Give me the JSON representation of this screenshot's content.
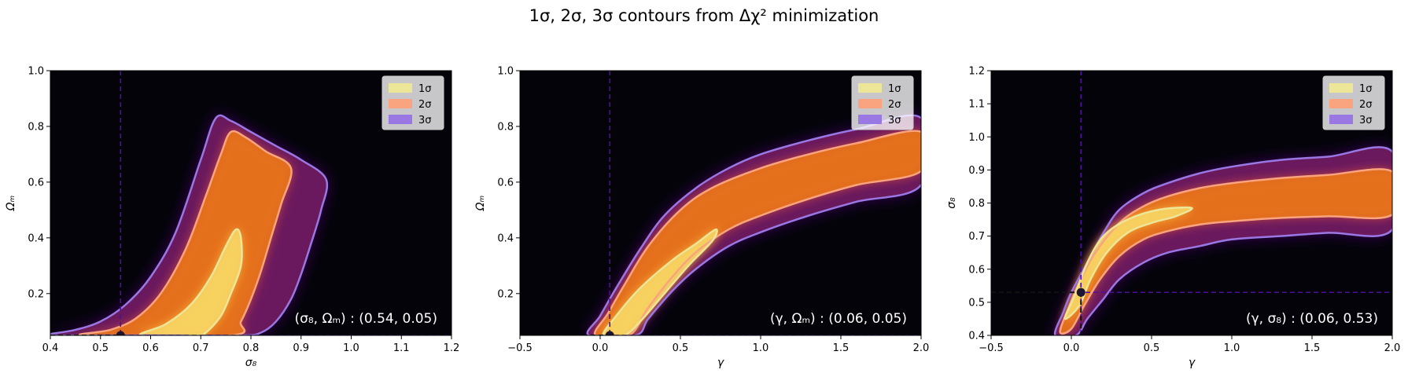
{
  "figure": {
    "suptitle": "1σ, 2σ, 3σ contours from Δχ² minimization"
  },
  "colors": {
    "background": "#04030a",
    "one_sigma": "#ede598",
    "two_sigma": "#f9a47e",
    "three_sigma": "#9a78e3",
    "marker_line": "#4b0f9b"
  },
  "chart_data": [
    {
      "type": "heatmap",
      "panel": "left",
      "xlabel": "σ₈",
      "ylabel": "Ωₘ",
      "xlim": [
        0.4,
        1.2
      ],
      "ylim": [
        0.05,
        1.0
      ],
      "xticks": [
        "0.4",
        "0.5",
        "0.6",
        "0.7",
        "0.8",
        "0.9",
        "1.0",
        "1.1",
        "1.2"
      ],
      "yticks": [
        "0.2",
        "0.4",
        "0.6",
        "0.8",
        "1.0"
      ],
      "legend": [
        "1σ",
        "2σ",
        "3σ"
      ],
      "legend_position": "upper right",
      "best_fit": {
        "x": 0.54,
        "y": 0.05
      },
      "annotation": "(σ₈, Ωₘ) : (0.54, 0.05)",
      "contours": {
        "three_sigma": [
          [
            0.4,
            0.055
          ],
          [
            0.45,
            0.07
          ],
          [
            0.5,
            0.1
          ],
          [
            0.55,
            0.16
          ],
          [
            0.6,
            0.26
          ],
          [
            0.65,
            0.42
          ],
          [
            0.7,
            0.68
          ],
          [
            0.73,
            0.83
          ],
          [
            0.76,
            0.82
          ],
          [
            0.8,
            0.78
          ],
          [
            0.85,
            0.73
          ],
          [
            0.9,
            0.68
          ],
          [
            0.95,
            0.61
          ],
          [
            0.94,
            0.5
          ],
          [
            0.92,
            0.38
          ],
          [
            0.9,
            0.27
          ],
          [
            0.88,
            0.18
          ],
          [
            0.85,
            0.1
          ],
          [
            0.82,
            0.06
          ],
          [
            0.78,
            0.05
          ],
          [
            0.6,
            0.05
          ],
          [
            0.45,
            0.05
          ],
          [
            0.4,
            0.05
          ]
        ],
        "two_sigma": [
          [
            0.47,
            0.05
          ],
          [
            0.52,
            0.07
          ],
          [
            0.57,
            0.11
          ],
          [
            0.62,
            0.2
          ],
          [
            0.67,
            0.36
          ],
          [
            0.71,
            0.55
          ],
          [
            0.74,
            0.7
          ],
          [
            0.76,
            0.78
          ],
          [
            0.79,
            0.76
          ],
          [
            0.83,
            0.71
          ],
          [
            0.88,
            0.65
          ],
          [
            0.86,
            0.52
          ],
          [
            0.84,
            0.4
          ],
          [
            0.82,
            0.28
          ],
          [
            0.8,
            0.18
          ],
          [
            0.78,
            0.1
          ],
          [
            0.76,
            0.05
          ]
        ],
        "one_sigma": [
          [
            0.58,
            0.05
          ],
          [
            0.63,
            0.09
          ],
          [
            0.68,
            0.16
          ],
          [
            0.72,
            0.26
          ],
          [
            0.75,
            0.37
          ],
          [
            0.77,
            0.43
          ],
          [
            0.78,
            0.4
          ],
          [
            0.78,
            0.3
          ],
          [
            0.76,
            0.2
          ],
          [
            0.74,
            0.12
          ],
          [
            0.71,
            0.06
          ],
          [
            0.69,
            0.05
          ]
        ]
      }
    },
    {
      "type": "heatmap",
      "panel": "middle",
      "xlabel": "γ",
      "ylabel": "Ωₘ",
      "xlim": [
        -0.5,
        2.0
      ],
      "ylim": [
        0.05,
        1.0
      ],
      "xticks": [
        "−0.5",
        "0.0",
        "0.5",
        "1.0",
        "1.5",
        "2.0"
      ],
      "yticks": [
        "0.2",
        "0.4",
        "0.6",
        "0.8",
        "1.0"
      ],
      "legend": [
        "1σ",
        "2σ",
        "3σ"
      ],
      "legend_position": "upper right",
      "best_fit": {
        "x": 0.06,
        "y": 0.05
      },
      "annotation": "(γ, Ωₘ) : (0.06, 0.05)",
      "contours": {
        "three_sigma": [
          [
            -0.07,
            0.05
          ],
          [
            0.0,
            0.12
          ],
          [
            0.1,
            0.22
          ],
          [
            0.25,
            0.36
          ],
          [
            0.4,
            0.48
          ],
          [
            0.6,
            0.58
          ],
          [
            0.8,
            0.65
          ],
          [
            1.0,
            0.7
          ],
          [
            1.3,
            0.75
          ],
          [
            1.6,
            0.79
          ],
          [
            2.0,
            0.83
          ],
          [
            2.0,
            0.59
          ],
          [
            1.6,
            0.53
          ],
          [
            1.3,
            0.48
          ],
          [
            1.0,
            0.42
          ],
          [
            0.8,
            0.37
          ],
          [
            0.6,
            0.29
          ],
          [
            0.45,
            0.21
          ],
          [
            0.3,
            0.11
          ],
          [
            0.22,
            0.05
          ]
        ],
        "two_sigma": [
          [
            -0.03,
            0.05
          ],
          [
            0.05,
            0.13
          ],
          [
            0.15,
            0.23
          ],
          [
            0.3,
            0.37
          ],
          [
            0.5,
            0.5
          ],
          [
            0.7,
            0.58
          ],
          [
            1.0,
            0.65
          ],
          [
            1.3,
            0.7
          ],
          [
            1.6,
            0.74
          ],
          [
            2.0,
            0.78
          ],
          [
            2.0,
            0.64
          ],
          [
            1.6,
            0.59
          ],
          [
            1.3,
            0.54
          ],
          [
            1.0,
            0.48
          ],
          [
            0.8,
            0.43
          ],
          [
            0.6,
            0.35
          ],
          [
            0.45,
            0.26
          ],
          [
            0.3,
            0.15
          ],
          [
            0.18,
            0.05
          ]
        ],
        "one_sigma": [
          [
            0.02,
            0.05
          ],
          [
            0.1,
            0.12
          ],
          [
            0.25,
            0.22
          ],
          [
            0.45,
            0.32
          ],
          [
            0.6,
            0.38
          ],
          [
            0.72,
            0.43
          ],
          [
            0.7,
            0.39
          ],
          [
            0.55,
            0.3
          ],
          [
            0.4,
            0.2
          ],
          [
            0.25,
            0.1
          ],
          [
            0.15,
            0.05
          ]
        ]
      }
    },
    {
      "type": "heatmap",
      "panel": "right",
      "xlabel": "γ",
      "ylabel": "σ₈",
      "xlim": [
        -0.5,
        2.0
      ],
      "ylim": [
        0.4,
        1.2
      ],
      "xticks": [
        "−0.5",
        "0.0",
        "0.5",
        "1.0",
        "1.5",
        "2.0"
      ],
      "yticks": [
        "0.4",
        "0.5",
        "0.6",
        "0.7",
        "0.8",
        "0.9",
        "1.0",
        "1.1",
        "1.2"
      ],
      "legend": [
        "1σ",
        "2σ",
        "3σ"
      ],
      "legend_position": "upper right",
      "best_fit": {
        "x": 0.06,
        "y": 0.53
      },
      "annotation": "(γ, σ₈) : (0.06, 0.53)",
      "contours": {
        "three_sigma": [
          [
            -0.1,
            0.4
          ],
          [
            -0.05,
            0.47
          ],
          [
            0.0,
            0.53
          ],
          [
            0.1,
            0.62
          ],
          [
            0.2,
            0.71
          ],
          [
            0.3,
            0.78
          ],
          [
            0.45,
            0.83
          ],
          [
            0.6,
            0.86
          ],
          [
            0.8,
            0.89
          ],
          [
            1.0,
            0.91
          ],
          [
            1.3,
            0.93
          ],
          [
            1.6,
            0.94
          ],
          [
            2.0,
            0.955
          ],
          [
            2.0,
            0.72
          ],
          [
            1.6,
            0.71
          ],
          [
            1.3,
            0.7
          ],
          [
            1.0,
            0.69
          ],
          [
            0.8,
            0.67
          ],
          [
            0.6,
            0.65
          ],
          [
            0.45,
            0.62
          ],
          [
            0.3,
            0.57
          ],
          [
            0.2,
            0.51
          ],
          [
            0.1,
            0.45
          ],
          [
            0.03,
            0.4
          ]
        ],
        "two_sigma": [
          [
            -0.07,
            0.41
          ],
          [
            -0.02,
            0.48
          ],
          [
            0.05,
            0.56
          ],
          [
            0.15,
            0.65
          ],
          [
            0.3,
            0.74
          ],
          [
            0.45,
            0.79
          ],
          [
            0.6,
            0.82
          ],
          [
            0.8,
            0.845
          ],
          [
            1.0,
            0.86
          ],
          [
            1.3,
            0.875
          ],
          [
            1.6,
            0.885
          ],
          [
            2.0,
            0.895
          ],
          [
            2.0,
            0.765
          ],
          [
            1.6,
            0.76
          ],
          [
            1.3,
            0.755
          ],
          [
            1.0,
            0.745
          ],
          [
            0.8,
            0.735
          ],
          [
            0.6,
            0.715
          ],
          [
            0.45,
            0.69
          ],
          [
            0.3,
            0.64
          ],
          [
            0.18,
            0.57
          ],
          [
            0.08,
            0.49
          ],
          [
            0.0,
            0.42
          ]
        ],
        "one_sigma": [
          [
            -0.04,
            0.45
          ],
          [
            0.02,
            0.52
          ],
          [
            0.1,
            0.62
          ],
          [
            0.2,
            0.7
          ],
          [
            0.35,
            0.75
          ],
          [
            0.55,
            0.78
          ],
          [
            0.75,
            0.785
          ],
          [
            0.65,
            0.76
          ],
          [
            0.5,
            0.74
          ],
          [
            0.35,
            0.71
          ],
          [
            0.22,
            0.65
          ],
          [
            0.12,
            0.57
          ],
          [
            0.05,
            0.49
          ]
        ]
      }
    }
  ]
}
